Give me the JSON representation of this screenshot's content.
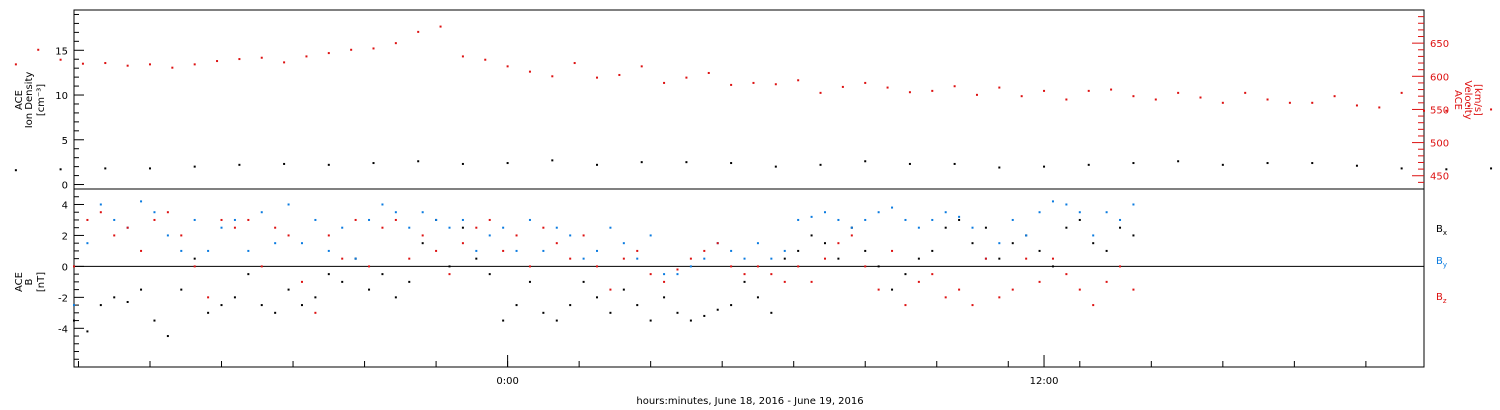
{
  "chart_data": [
    {
      "type": "scatter",
      "panel": "top",
      "ylabel_left": [
        "ACE",
        "Ion Density",
        "[cm⁻³]"
      ],
      "ylabel_right": [
        "ACE",
        "Velocity",
        "[km/s]"
      ],
      "ylim_left": [
        -0.5,
        19.5
      ],
      "ylim_right": [
        430,
        700
      ],
      "yticks_left": [
        0,
        5,
        10,
        15
      ],
      "yticks_right": [
        450,
        500,
        550,
        600,
        650
      ],
      "series": [
        {
          "axis": "left",
          "color": "#000000",
          "x": [
            -19,
            -18,
            -17,
            -16,
            -15,
            -14,
            -13,
            -12,
            -11,
            -10,
            -9,
            -8,
            -7,
            -6,
            -5,
            -4,
            -3,
            -2,
            -1,
            0,
            1,
            2,
            3,
            4,
            5,
            6,
            7,
            8,
            9,
            10,
            11,
            12,
            13,
            14,
            15,
            16,
            17,
            18,
            19,
            20,
            21,
            22,
            23,
            24,
            25,
            26,
            27,
            28
          ],
          "y": [
            1.9,
            1.8,
            1.8,
            1.9,
            1.9,
            1.8,
            1.7,
            1.8,
            1.6,
            1.7,
            1.8,
            1.8,
            2.0,
            2.2,
            2.3,
            2.2,
            2.4,
            2.6,
            2.3,
            2.4,
            2.7,
            2.2,
            2.5,
            2.5,
            2.4,
            2.0,
            2.2,
            2.6,
            2.3,
            2.3,
            1.9,
            2.0,
            2.2,
            2.4,
            2.6,
            2.2,
            2.4,
            2.4,
            2.1,
            1.8,
            1.7,
            1.8,
            1.6,
            1.8,
            1.7,
            1.8,
            2.0,
            2.2
          ]
        },
        {
          "axis": "right",
          "color": "#dd1111",
          "x": [
            -19,
            -18.5,
            -18,
            -17.5,
            -17,
            -16.5,
            -16,
            -15.5,
            -15,
            -14.5,
            -14,
            -13.5,
            -13,
            -12.5,
            -12,
            -11.5,
            -11,
            -10.5,
            -10,
            -9.5,
            -9,
            -8.5,
            -8,
            -7.5,
            -7,
            -6.5,
            -6,
            -5.5,
            -5,
            -4.5,
            -4,
            -3.5,
            -3,
            -2.5,
            -2,
            -1.5,
            -1,
            -0.5,
            0,
            0.5,
            1,
            1.5,
            2,
            2.5,
            3,
            3.5,
            4,
            4.5,
            5,
            5.5,
            6,
            6.5,
            7,
            7.5,
            8,
            8.5,
            9,
            9.5,
            10,
            10.5,
            11,
            11.5,
            12,
            12.5,
            13,
            13.5,
            14,
            14.5,
            15,
            15.5,
            16,
            16.5,
            17,
            17.5,
            18,
            18.5,
            19,
            19.5,
            20,
            20.5,
            21,
            21.5,
            22,
            22.5,
            23,
            23.5,
            24,
            24.5,
            25,
            25.5,
            26,
            26.5,
            27,
            27.5,
            28
          ],
          "y": [
            600,
            603,
            605,
            612,
            618,
            615,
            612,
            609,
            611,
            607,
            612,
            635,
            632,
            610,
            616,
            617,
            618,
            640,
            625,
            619,
            620,
            616,
            618,
            613,
            618,
            623,
            626,
            628,
            621,
            630,
            635,
            640,
            642,
            650,
            667,
            675,
            630,
            625,
            615,
            607,
            600,
            620,
            598,
            602,
            615,
            590,
            598,
            605,
            587,
            590,
            588,
            594,
            575,
            584,
            590,
            583,
            576,
            578,
            585,
            572,
            583,
            570,
            578,
            565,
            578,
            580,
            570,
            565,
            575,
            568,
            560,
            575,
            565,
            560,
            560,
            570,
            556,
            553,
            575,
            548,
            548,
            555,
            550,
            552,
            545,
            548,
            554,
            552,
            556,
            559,
            555,
            560,
            565,
            558,
            555
          ]
        }
      ]
    },
    {
      "type": "scatter",
      "panel": "bottom",
      "ylabel_left": [
        "ACE",
        "B",
        "[nT]"
      ],
      "ylim": [
        -6.5,
        5.0
      ],
      "yticks": [
        -4,
        -2,
        0,
        2,
        4
      ],
      "zero_line": true,
      "x_axis": {
        "label": "hours:minutes, June 18, 2016 - June 19, 2016",
        "tick_labels": [
          "0:00",
          "12:00"
        ],
        "tick_values": [
          0,
          12
        ],
        "xlim": [
          -9.7,
          20.5
        ],
        "minor_step": 1.6
      },
      "legend": [
        {
          "text": "B",
          "sub": "x",
          "color": "#000000"
        },
        {
          "text": "B",
          "sub": "y",
          "color": "#0a7be0"
        },
        {
          "text": "B",
          "sub": "z",
          "color": "#dd1111"
        }
      ],
      "series": [
        {
          "color": "#000000",
          "x": [
            -9.7,
            -9.4,
            -9.1,
            -8.8,
            -8.5,
            -8.2,
            -7.9,
            -7.6,
            -7.3,
            -7.0,
            -6.7,
            -6.4,
            -6.1,
            -5.8,
            -5.5,
            -5.2,
            -4.9,
            -4.6,
            -4.3,
            -4.0,
            -3.7,
            -3.4,
            -3.1,
            -2.8,
            -2.5,
            -2.2,
            -1.9,
            -1.6,
            -1.3,
            -1.0,
            -0.7,
            -0.4,
            -0.1,
            0.2,
            0.5,
            0.8,
            1.1,
            1.4,
            1.7,
            2.0,
            2.3,
            2.6,
            2.9,
            3.2,
            3.5,
            3.8,
            4.1,
            4.4,
            4.7,
            5.0,
            5.3,
            5.6,
            5.9,
            6.2,
            6.5,
            6.8,
            7.1,
            7.4,
            7.7,
            8.0,
            8.3,
            8.6,
            8.9,
            9.2,
            9.5,
            9.8,
            10.1,
            10.4,
            10.7,
            11.0,
            11.3,
            11.6,
            11.9,
            12.2,
            12.5,
            12.8,
            13.1,
            13.4,
            13.7,
            14.0
          ],
          "y": [
            -3.5,
            -4.2,
            -2.5,
            -2.0,
            -2.3,
            -1.5,
            -3.5,
            -4.5,
            -1.5,
            0.5,
            -3.0,
            -2.5,
            -2.0,
            -0.5,
            -2.5,
            -3.0,
            -1.5,
            -2.5,
            -2.0,
            -0.5,
            -1.0,
            0.5,
            -1.5,
            -0.5,
            -2.0,
            -1.0,
            1.5,
            3.0,
            0.0,
            2.5,
            0.5,
            -0.5,
            -3.5,
            -2.5,
            -1.0,
            -3.0,
            -3.5,
            -2.5,
            -1.0,
            -2.0,
            -3.0,
            -1.5,
            -2.5,
            -3.5,
            -2.0,
            -3.0,
            -3.5,
            -3.2,
            -2.8,
            -2.5,
            -1.0,
            -2.0,
            -3.0,
            0.5,
            1.0,
            2.0,
            1.5,
            0.5,
            2.5,
            1.0,
            0.0,
            -1.5,
            -0.5,
            0.5,
            1.0,
            2.5,
            3.0,
            1.5,
            2.5,
            0.5,
            1.5,
            2.0,
            1.0,
            0.0,
            2.5,
            3.0,
            1.5,
            1.0,
            2.5,
            2.0
          ]
        },
        {
          "color": "#0a7be0",
          "x": [
            -9.7,
            -9.4,
            -9.1,
            -8.8,
            -8.5,
            -8.2,
            -7.9,
            -7.6,
            -7.3,
            -7.0,
            -6.7,
            -6.4,
            -6.1,
            -5.8,
            -5.5,
            -5.2,
            -4.9,
            -4.6,
            -4.3,
            -4.0,
            -3.7,
            -3.4,
            -3.1,
            -2.8,
            -2.5,
            -2.2,
            -1.9,
            -1.6,
            -1.3,
            -1.0,
            -0.7,
            -0.4,
            -0.1,
            0.2,
            0.5,
            0.8,
            1.1,
            1.4,
            1.7,
            2.0,
            2.3,
            2.6,
            2.9,
            3.2,
            3.5,
            3.8,
            4.1,
            4.4,
            4.7,
            5.0,
            5.3,
            5.6,
            5.9,
            6.2,
            6.5,
            6.8,
            7.1,
            7.4,
            7.7,
            8.0,
            8.3,
            8.6,
            8.9,
            9.2,
            9.5,
            9.8,
            10.1,
            10.4,
            10.7,
            11.0,
            11.3,
            11.6,
            11.9,
            12.2,
            12.5,
            12.8,
            13.1,
            13.4,
            13.7,
            14.0
          ],
          "y": [
            -2.5,
            1.5,
            4.0,
            3.0,
            2.5,
            4.2,
            3.5,
            2.0,
            1.0,
            3.0,
            1.0,
            2.5,
            3.0,
            1.0,
            3.5,
            1.5,
            4.0,
            1.5,
            3.0,
            1.0,
            2.5,
            0.5,
            3.0,
            4.0,
            3.5,
            2.5,
            3.5,
            3.0,
            2.5,
            3.0,
            1.0,
            2.0,
            2.5,
            1.0,
            3.0,
            1.0,
            2.5,
            2.0,
            0.5,
            1.0,
            2.5,
            1.5,
            0.5,
            2.0,
            -0.5,
            -0.5,
            0.0,
            0.5,
            1.5,
            1.0,
            0.5,
            1.5,
            0.5,
            1.0,
            3.0,
            3.2,
            3.5,
            3.0,
            2.5,
            3.0,
            3.5,
            3.8,
            3.0,
            2.5,
            3.0,
            3.5,
            3.2,
            2.5,
            0.5,
            1.5,
            3.0,
            2.0,
            3.5,
            4.2,
            4.0,
            3.5,
            2.0,
            3.5,
            3.0,
            4.0
          ]
        },
        {
          "color": "#dd1111",
          "x": [
            -9.7,
            -9.4,
            -9.1,
            -8.8,
            -8.5,
            -8.2,
            -7.9,
            -7.6,
            -7.3,
            -7.0,
            -6.7,
            -6.4,
            -6.1,
            -5.8,
            -5.5,
            -5.2,
            -4.9,
            -4.6,
            -4.3,
            -4.0,
            -3.7,
            -3.4,
            -3.1,
            -2.8,
            -2.5,
            -2.2,
            -1.9,
            -1.6,
            -1.3,
            -1.0,
            -0.7,
            -0.4,
            -0.1,
            0.2,
            0.5,
            0.8,
            1.1,
            1.4,
            1.7,
            2.0,
            2.3,
            2.6,
            2.9,
            3.2,
            3.5,
            3.8,
            4.1,
            4.4,
            4.7,
            5.0,
            5.3,
            5.6,
            5.9,
            6.2,
            6.5,
            6.8,
            7.1,
            7.4,
            7.7,
            8.0,
            8.3,
            8.6,
            8.9,
            9.2,
            9.5,
            9.8,
            10.1,
            10.4,
            10.7,
            11.0,
            11.3,
            11.6,
            11.9,
            12.2,
            12.5,
            12.8,
            13.1,
            13.4,
            13.7,
            14.0
          ],
          "y": [
            0.0,
            3.0,
            3.5,
            2.0,
            2.5,
            1.0,
            3.0,
            3.5,
            2.0,
            0.0,
            -2.0,
            3.0,
            2.5,
            3.0,
            0.0,
            2.5,
            2.0,
            -1.0,
            -3.0,
            2.0,
            0.5,
            3.0,
            0.0,
            2.5,
            3.0,
            0.5,
            2.0,
            1.0,
            -0.5,
            1.5,
            2.5,
            3.0,
            1.0,
            2.0,
            0.0,
            2.5,
            1.5,
            0.5,
            2.0,
            0.0,
            -1.5,
            0.5,
            1.0,
            -0.5,
            -1.0,
            -0.2,
            0.5,
            1.0,
            1.5,
            0.0,
            -0.5,
            0.0,
            -0.5,
            -1.0,
            0.0,
            -1.0,
            0.5,
            1.5,
            2.0,
            0.0,
            -1.5,
            1.0,
            -2.5,
            -1.0,
            -0.5,
            -2.0,
            -1.5,
            -2.5,
            0.5,
            -2.0,
            -1.5,
            0.5,
            -1.0,
            0.5,
            -0.5,
            -1.5,
            -2.5,
            -1.0,
            0.0,
            -1.5
          ]
        }
      ]
    }
  ]
}
